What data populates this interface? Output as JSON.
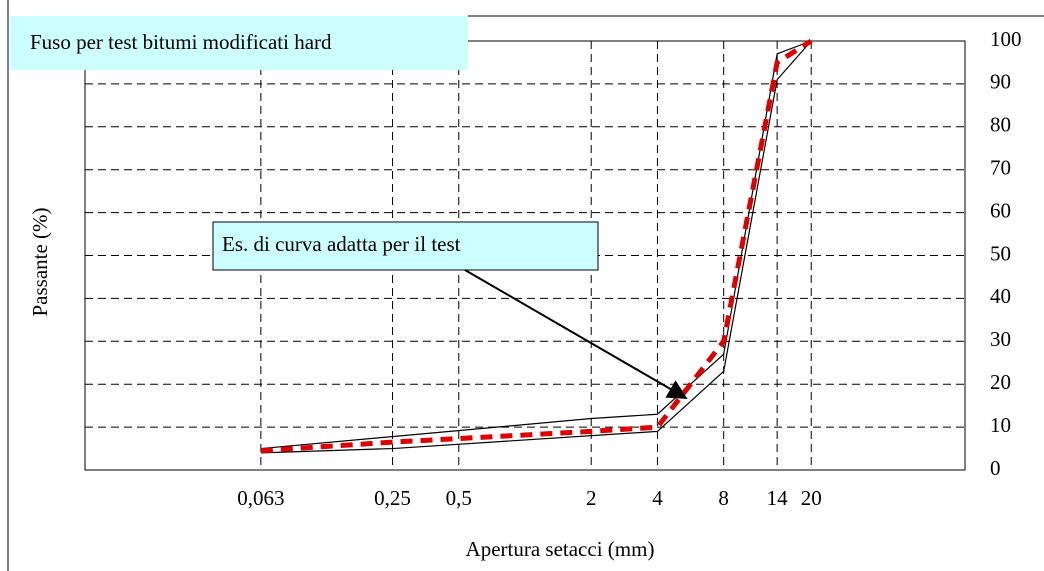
{
  "chart_data": {
    "type": "line",
    "title": "Fuso per test bitumi modificati hard",
    "xlabel": "Apertura setacci  (mm)",
    "ylabel": "Passante (%)",
    "xscale": "log",
    "xlim": [
      0.01,
      100
    ],
    "ylim": [
      0,
      100
    ],
    "xticks": [
      {
        "value": 0.063,
        "label": "0,063"
      },
      {
        "value": 0.25,
        "label": "0,25"
      },
      {
        "value": 0.5,
        "label": "0,5"
      },
      2,
      4,
      8,
      14,
      20
    ],
    "yticks": [
      0,
      10,
      20,
      30,
      40,
      50,
      60,
      70,
      80,
      90,
      100
    ],
    "grid": true,
    "series": [
      {
        "color": "#000000",
        "x": [
          0.063,
          2,
          4,
          8,
          14,
          20
        ],
        "values": [
          5,
          12,
          13,
          27,
          97,
          100
        ]
      },
      {
        "color": "#000000",
        "x": [
          0.063,
          0.25,
          4,
          8,
          14,
          20
        ],
        "values": [
          4,
          5,
          9,
          23,
          91,
          100
        ]
      },
      {
        "color": "#e00000",
        "dashed": true,
        "x": [
          0.063,
          0.25,
          2,
          4,
          8,
          14,
          20
        ],
        "values": [
          4.5,
          6.5,
          9,
          10,
          30,
          95,
          100
        ]
      }
    ],
    "annotations": [
      {
        "text": "Es. di curva adatta per il test"
      }
    ]
  }
}
